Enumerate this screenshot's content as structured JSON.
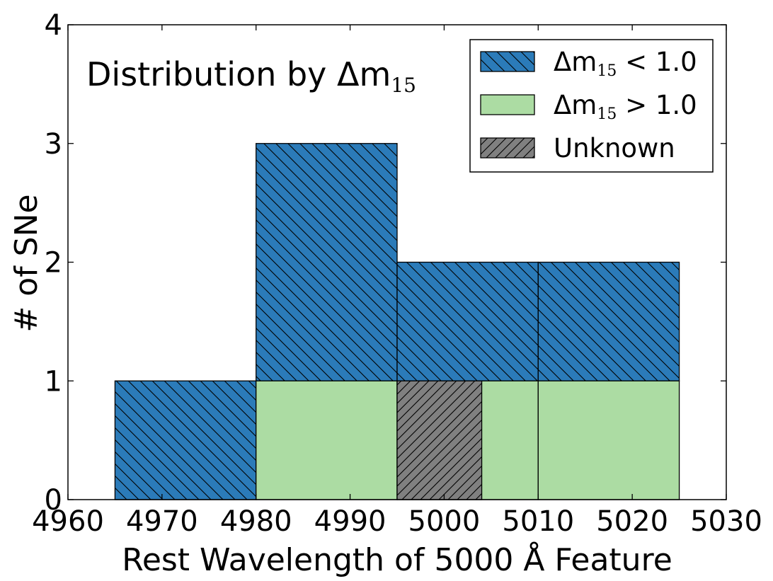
{
  "chart_data": {
    "type": "bar",
    "title": "Distribution by Δm",
    "title_subscript": "15",
    "xlabel": "Rest Wavelength of 5000 Å Feature",
    "ylabel": "# of SNe",
    "xlim": [
      4960,
      5030
    ],
    "ylim": [
      0,
      4
    ],
    "x_ticks": [
      "4960",
      "4970",
      "4980",
      "4990",
      "5000",
      "5010",
      "5020",
      "5030"
    ],
    "y_ticks": [
      "0",
      "1",
      "2",
      "3",
      "4"
    ],
    "grid": false,
    "legend_position": "top-right",
    "series": [
      {
        "name": "Δm15 < 1.0",
        "label_prefix": "Δm",
        "label_subscript": "15",
        "label_suffix": " < 1.0",
        "color": "#2b7bb9",
        "hatch": "backslash",
        "bars": [
          {
            "x0": 4965,
            "x1": 4980,
            "bottom": 0,
            "top": 1
          },
          {
            "x0": 4980,
            "x1": 4995,
            "bottom": 1,
            "top": 3
          },
          {
            "x0": 4995,
            "x1": 5010,
            "bottom": 1,
            "top": 2
          },
          {
            "x0": 5010,
            "x1": 5025,
            "bottom": 1,
            "top": 2
          }
        ]
      },
      {
        "name": "Δm15 > 1.0",
        "label_prefix": "Δm",
        "label_subscript": "15",
        "label_suffix": " > 1.0",
        "color": "#acdca3",
        "hatch": "none",
        "bars": [
          {
            "x0": 4980,
            "x1": 4995,
            "bottom": 0,
            "top": 1
          },
          {
            "x0": 4995,
            "x1": 5010,
            "bottom": 0,
            "top": 1
          },
          {
            "x0": 5010,
            "x1": 5025,
            "bottom": 0,
            "top": 1
          }
        ]
      },
      {
        "name": "Unknown",
        "label_prefix": "Unknown",
        "label_subscript": "",
        "label_suffix": "",
        "color": "#808080",
        "hatch": "slash",
        "bars": [
          {
            "x0": 4995,
            "x1": 5004,
            "bottom": 0,
            "top": 1
          }
        ]
      }
    ]
  }
}
